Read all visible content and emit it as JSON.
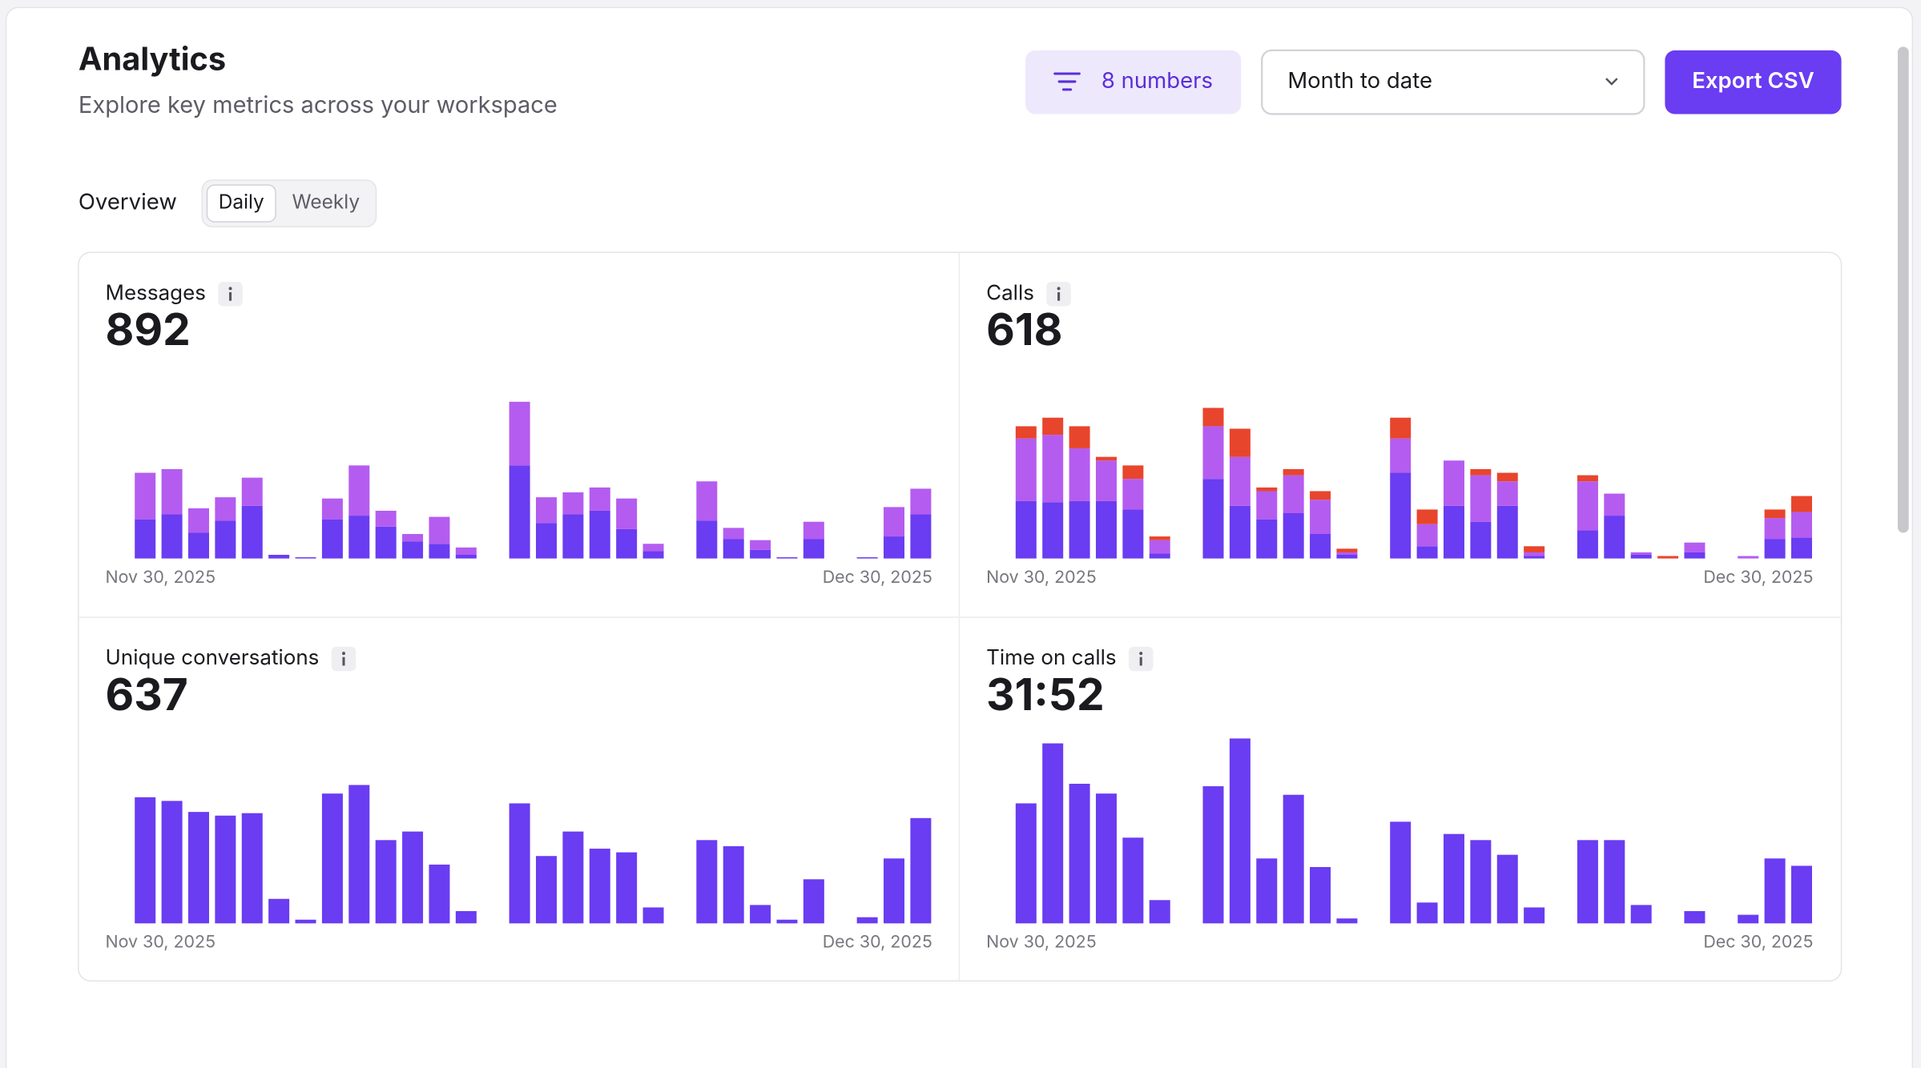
{
  "header": {
    "title": "Analytics",
    "subtitle": "Explore key metrics across your workspace",
    "filter": "8 numbers",
    "range": "Month to date",
    "export": "Export CSV"
  },
  "tabs": {
    "section": "Overview",
    "options": [
      "Daily",
      "Weekly"
    ]
  },
  "panels": [
    {
      "title": "Messages",
      "total": 892,
      "chart_data": {
        "type": "bar",
        "stacked": true,
        "ylim": [
          0,
          155
        ],
        "categories": [
          "Nov 30, 2025",
          null,
          null,
          null,
          null,
          null,
          null,
          null,
          null,
          null,
          null,
          null,
          null,
          null,
          null,
          null,
          null,
          null,
          null,
          null,
          null,
          null,
          null,
          null,
          null,
          null,
          null,
          null,
          null,
          "Dec 30, 2025"
        ],
        "series": [
          {
            "color": "#6a3cf2",
            "values": [
              32,
              36,
              21,
              31,
              43,
              3,
              1,
              32,
              35,
              26,
              14,
              12,
              3,
              0,
              76,
              29,
              36,
              39,
              24,
              6,
              0,
              31,
              16,
              7,
              1,
              16,
              0,
              1,
              18,
              36
            ]
          },
          {
            "color": "#b45cf0",
            "values": [
              38,
              37,
              20,
              19,
              23,
              0,
              0,
              17,
              41,
              13,
              6,
              22,
              6,
              0,
              52,
              21,
              18,
              19,
              25,
              6,
              0,
              32,
              9,
              8,
              0,
              14,
              0,
              0,
              24,
              21
            ]
          }
        ]
      }
    },
    {
      "title": "Calls",
      "total": 618,
      "chart_data": {
        "type": "bar",
        "stacked": true,
        "ylim": [
          0,
          155
        ],
        "categories": [
          "Nov 30, 2025",
          null,
          null,
          null,
          null,
          null,
          null,
          null,
          null,
          null,
          null,
          null,
          null,
          null,
          null,
          null,
          null,
          null,
          null,
          null,
          null,
          null,
          null,
          null,
          null,
          null,
          null,
          null,
          null,
          "Dec 30, 2025"
        ],
        "series": [
          {
            "color": "#6a3cf2",
            "values": [
              47,
              46,
              47,
              47,
              40,
              4,
              0,
              65,
              43,
              32,
              37,
              20,
              3,
              0,
              70,
              10,
              43,
              30,
              43,
              2,
              0,
              23,
              35,
              3,
              0,
              5,
              0,
              0,
              16,
              17
            ]
          },
          {
            "color": "#b45cf0",
            "values": [
              51,
              55,
              43,
              33,
              25,
              11,
              0,
              43,
              40,
              23,
              31,
              28,
              2,
              0,
              28,
              18,
              37,
              38,
              20,
              3,
              0,
              40,
              18,
              2,
              0,
              8,
              0,
              2,
              17,
              21
            ]
          },
          {
            "color": "#e8452d",
            "values": [
              10,
              14,
              18,
              3,
              11,
              3,
              0,
              15,
              23,
              3,
              5,
              7,
              3,
              0,
              17,
              12,
              0,
              5,
              7,
              5,
              0,
              5,
              0,
              0,
              2,
              0,
              0,
              0,
              7,
              13
            ]
          }
        ]
      }
    },
    {
      "title": "Unique conversations",
      "total": 637,
      "chart_data": {
        "type": "bar",
        "stacked": true,
        "ylim": [
          0,
          155
        ],
        "categories": [
          "Nov 30, 2025",
          null,
          null,
          null,
          null,
          null,
          null,
          null,
          null,
          null,
          null,
          null,
          null,
          null,
          null,
          null,
          null,
          null,
          null,
          null,
          null,
          null,
          null,
          null,
          null,
          null,
          null,
          null,
          null,
          "Dec 30, 2025"
        ],
        "series": [
          {
            "color": "#6a3cf2",
            "values": [
              103,
              100,
              91,
              88,
              90,
              20,
              3,
              106,
              113,
              68,
              75,
              48,
              10,
              0,
              98,
              55,
              75,
              61,
              58,
              13,
              0,
              68,
              63,
              15,
              3,
              36,
              0,
              5,
              53,
              86
            ]
          }
        ]
      }
    },
    {
      "title": "Time on calls",
      "total": "31:52",
      "chart_data": {
        "type": "bar",
        "stacked": true,
        "ylim": [
          0,
          155
        ],
        "categories": [
          "Nov 30, 2025",
          null,
          null,
          null,
          null,
          null,
          null,
          null,
          null,
          null,
          null,
          null,
          null,
          null,
          null,
          null,
          null,
          null,
          null,
          null,
          null,
          null,
          null,
          null,
          null,
          null,
          null,
          null,
          null,
          "Dec 30, 2025"
        ],
        "series": [
          {
            "color": "#6a3cf2",
            "values": [
              98,
              147,
              114,
              106,
              70,
              19,
              0,
              112,
              151,
              53,
              105,
              46,
              4,
              0,
              83,
              17,
              73,
              68,
              56,
              13,
              0,
              68,
              68,
              15,
              0,
              10,
              0,
              7,
              53,
              47
            ]
          }
        ]
      }
    }
  ]
}
